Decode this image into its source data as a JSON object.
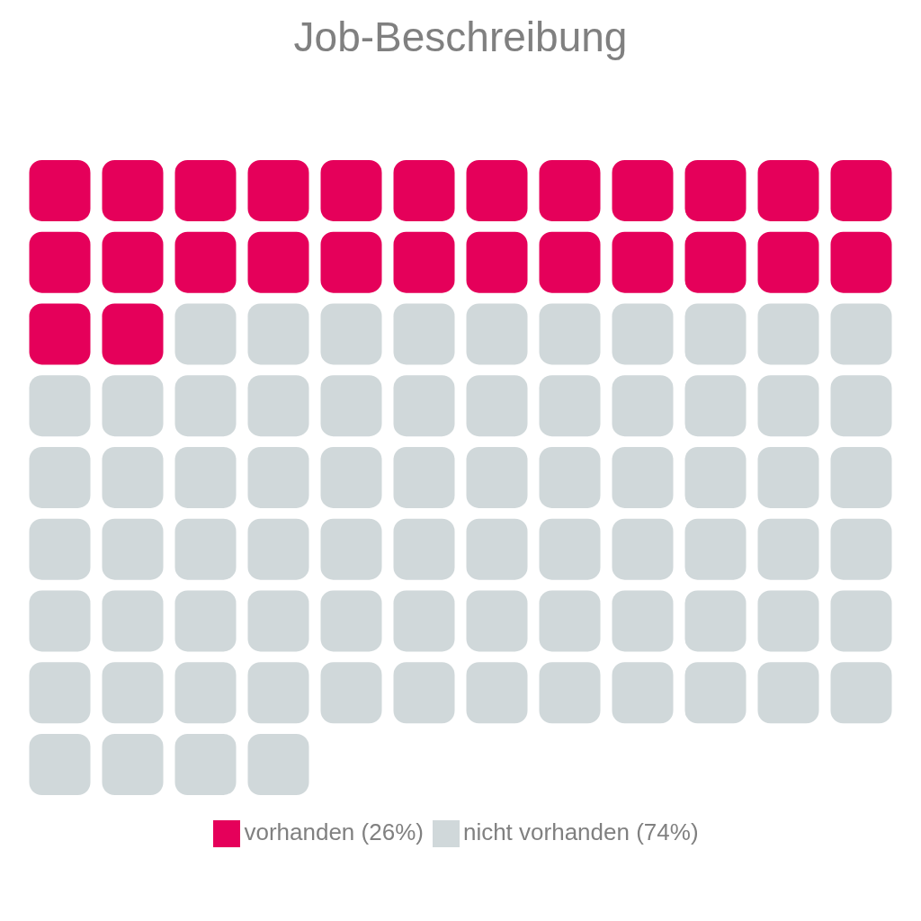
{
  "chart_data": {
    "type": "other",
    "title": "Job-Beschreibung",
    "series": [
      {
        "name": "vorhanden",
        "color": "#e5005a",
        "values": [
          26
        ],
        "value_labels": [
          "(26%)"
        ]
      },
      {
        "name": "nicht vorhanden",
        "color": "#d0d8da",
        "values": [
          74
        ],
        "value_labels": [
          "(74%)"
        ]
      }
    ],
    "legend": "bottom"
  }
}
